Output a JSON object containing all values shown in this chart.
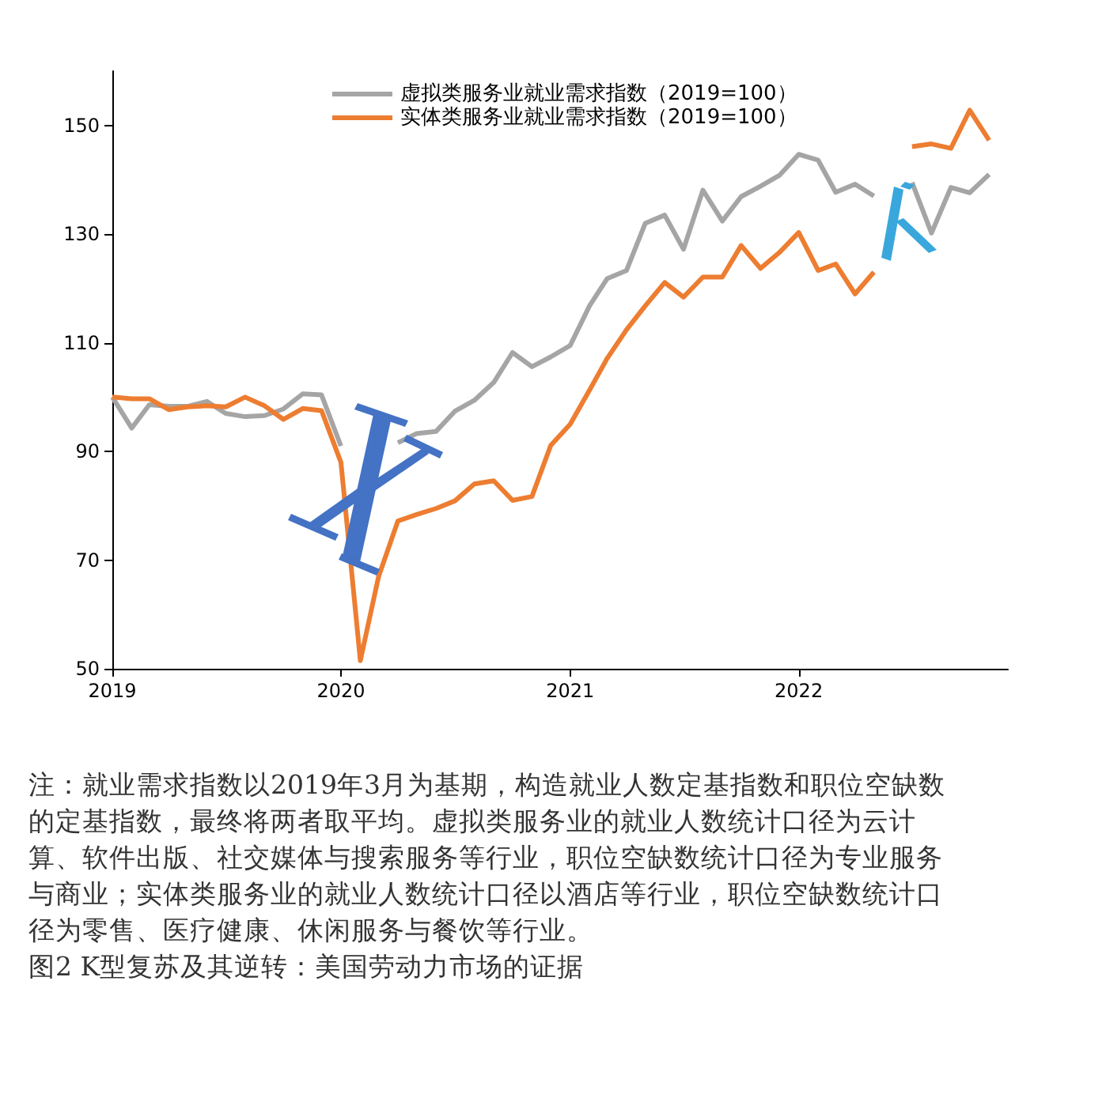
{
  "chart_data": {
    "type": "line",
    "title": "图2  K型复苏及其逆转：美国劳动力市场的证据",
    "annotations": [
      "注：就业需求指数以2019年3月为基期，构造就业人数定基指数和职位空缺数的定基指数，最终将两者取平均。虚拟类服务业的就业人数统计口径为云计算、软件出版、社交媒体与搜索服务等行业，职位空缺数统计口径为专业服务与商业；实体类服务业的就业人数统计口径以酒店等行业，职位空缺数统计口径为零售、医疗健康、休闲服务与餐饮等行业。"
    ],
    "x": [
      "2019-01",
      "2019-02",
      "2019-03",
      "2019-04",
      "2019-05",
      "2019-06",
      "2019-07",
      "2019-08",
      "2019-09",
      "2019-10",
      "2019-11",
      "2019-12",
      "2020-01",
      "2020-02",
      "2020-03",
      "2020-04",
      "2020-05",
      "2020-06",
      "2020-07",
      "2020-08",
      "2020-09",
      "2020-10",
      "2020-11",
      "2020-12",
      "2021-01",
      "2021-02",
      "2021-03",
      "2021-04",
      "2021-05",
      "2021-06",
      "2021-07",
      "2021-08",
      "2021-09",
      "2021-10",
      "2021-11",
      "2021-12",
      "2022-01",
      "2022-02",
      "2022-03",
      "2022-04",
      "2022-05",
      "2022-06",
      "2022-07",
      "2022-08",
      "2022-09",
      "2022-10",
      "2022-11"
    ],
    "series": [
      {
        "name": "虚拟类服务业就业需求指数（2019=100）",
        "color": "#a5a5a5",
        "values": [
          100,
          94.3,
          98.6,
          98.3,
          98.3,
          99.2,
          97,
          96.4,
          96.6,
          97.8,
          100.6,
          100.4,
          91,
          null,
          null,
          91.6,
          93.3,
          93.7,
          97.4,
          99.4,
          102.7,
          108.2,
          105.6,
          107.4,
          109.5,
          116.8,
          121.8,
          123.3,
          132,
          133.5,
          127.2,
          138.1,
          132.4,
          136.9,
          138.8,
          140.8,
          144.7,
          143.6,
          137.7,
          139.2,
          137,
          null,
          139.5,
          130.2,
          138.6,
          137.6,
          141
        ]
      },
      {
        "name": "实体类服务业就业需求指数（2019=100）",
        "color": "#ed7d31",
        "values": [
          100,
          99.7,
          99.7,
          97.7,
          98.2,
          98.4,
          98.2,
          100,
          98.4,
          95.9,
          97.9,
          97.5,
          88,
          51.5,
          66.9,
          77.2,
          78.4,
          79.5,
          80.9,
          84,
          84.6,
          81,
          81.7,
          91.1,
          95,
          101.3,
          107.1,
          112.4,
          116.8,
          121.1,
          118.4,
          122.1,
          122.1,
          127.9,
          123.7,
          126.6,
          130.3,
          123.3,
          124.5,
          119,
          123,
          null,
          146.1,
          146.6,
          145.8,
          152.8,
          147.3
        ]
      }
    ],
    "xlim": [
      "2019-01",
      "2022-12"
    ],
    "xticks": [
      "2019",
      "2020",
      "2021",
      "2022"
    ],
    "ylim": [
      50,
      160
    ],
    "yticks": [
      50,
      70,
      90,
      110,
      130,
      150
    ],
    "grid": false,
    "legend": "top",
    "marker": "none",
    "line_style": "solid"
  }
}
